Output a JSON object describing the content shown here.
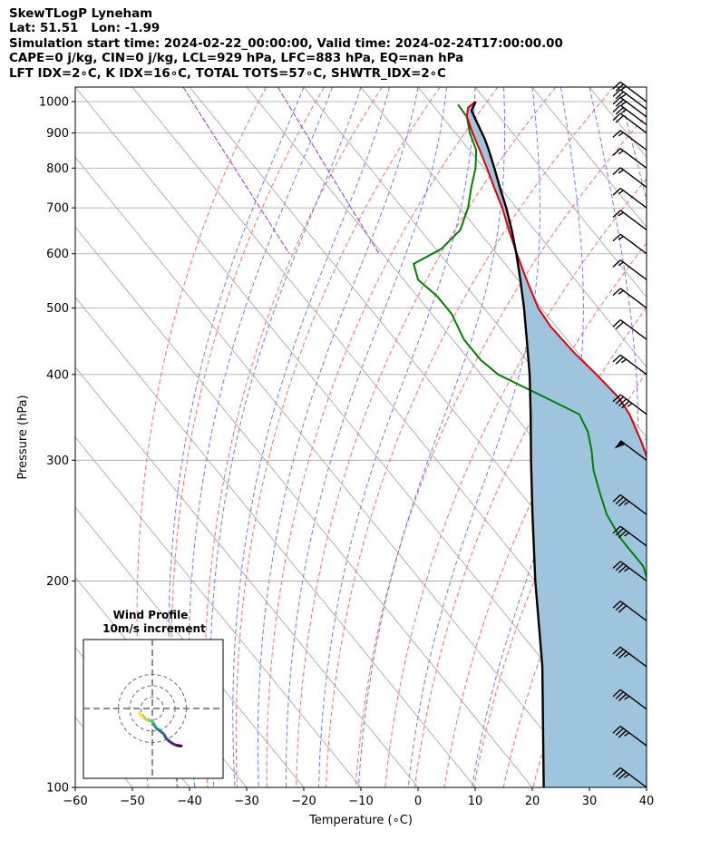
{
  "header": {
    "line1": "SkewTLogP Lyneham",
    "line2": "Lat: 51.51   Lon: -1.99",
    "line3": "Simulation start time: 2024-02-22_00:00:00, Valid time: 2024-02-24T17:00:00.00",
    "line4": "CAPE=0 j/kg, CIN=0 j/kg, LCL=929 hPa, LFC=883 hPa, EQ=nan hPa",
    "line5": "LFT IDX=2∘C, K IDX=16∘C, TOTAL TOTS=57∘C, SHWTR_IDX=2∘C"
  },
  "colors": {
    "temperature": "#e00000",
    "dewpoint": "#008000",
    "parcel": "#000000",
    "cape_fill": "#9fc4de",
    "dry_adiabat": "#ff5050",
    "moist_adiabat": "#5060ff",
    "mixing_ratio": "#9933cc",
    "isotherm": "#a0a0a0"
  },
  "chart_data": {
    "type": "line",
    "xlabel": "Temperature (∘C)",
    "ylabel": "Pressure (hPa)",
    "xlim": [
      -60,
      40
    ],
    "ylim": [
      1050,
      100
    ],
    "y_scale": "log",
    "x_ticks": [
      "−60",
      "−50",
      "−40",
      "−30",
      "−20",
      "−10",
      "0",
      "10",
      "20",
      "30",
      "40"
    ],
    "y_ticks": [
      "100",
      "200",
      "300",
      "400",
      "500",
      "600",
      "700",
      "800",
      "900",
      "1000"
    ],
    "y_tick_values": [
      100,
      200,
      300,
      400,
      500,
      600,
      700,
      800,
      900,
      1000
    ],
    "series": [
      {
        "key": "temperature",
        "points": [
          [
            1000,
            8
          ],
          [
            980,
            5.8
          ],
          [
            950,
            4.3
          ],
          [
            900,
            3
          ],
          [
            850,
            1.8
          ],
          [
            800,
            0.5
          ],
          [
            750,
            -1
          ],
          [
            700,
            -2.5
          ],
          [
            650,
            -4.5
          ],
          [
            600,
            -6.5
          ],
          [
            550,
            -8.5
          ],
          [
            500,
            -10.5
          ],
          [
            470,
            -11
          ],
          [
            430,
            -10.6
          ],
          [
            400,
            -9.8
          ],
          [
            370,
            -9.2
          ],
          [
            350,
            -9.7
          ],
          [
            320,
            -11.5
          ],
          [
            300,
            -13
          ],
          [
            280,
            -15
          ],
          [
            265,
            -16.5
          ],
          [
            250,
            -18
          ],
          [
            235,
            -17
          ],
          [
            220,
            -14.5
          ],
          [
            205,
            -11
          ],
          [
            190,
            -7.5
          ],
          [
            170,
            -3.5
          ],
          [
            150,
            1
          ],
          [
            130,
            5.5
          ],
          [
            115,
            9
          ],
          [
            100,
            12
          ]
        ]
      },
      {
        "key": "dewpoint",
        "points": [
          [
            990,
            4.5
          ],
          [
            950,
            4.3
          ],
          [
            900,
            2.5
          ],
          [
            850,
            1.2
          ],
          [
            800,
            -1.5
          ],
          [
            750,
            -5
          ],
          [
            700,
            -8.5
          ],
          [
            650,
            -13
          ],
          [
            610,
            -19
          ],
          [
            580,
            -26
          ],
          [
            550,
            -27.5
          ],
          [
            520,
            -26.5
          ],
          [
            490,
            -26.5
          ],
          [
            450,
            -28
          ],
          [
            420,
            -28
          ],
          [
            400,
            -27
          ],
          [
            370,
            -22
          ],
          [
            350,
            -18.5
          ],
          [
            330,
            -19.5
          ],
          [
            310,
            -21.5
          ],
          [
            290,
            -24
          ],
          [
            270,
            -26
          ],
          [
            250,
            -28
          ],
          [
            230,
            -29
          ],
          [
            210,
            -29
          ],
          [
            195,
            -31
          ],
          [
            180,
            -35
          ],
          [
            165,
            -38
          ],
          [
            145,
            -38
          ],
          [
            120,
            -37
          ],
          [
            100,
            -34.5
          ]
        ]
      },
      {
        "key": "parcel",
        "points": [
          [
            1000,
            8
          ],
          [
            970,
            6
          ],
          [
            929,
            5.2
          ],
          [
            883,
            4.3
          ],
          [
            850,
            3.4
          ],
          [
            800,
            1.8
          ],
          [
            750,
            0
          ],
          [
            700,
            -1.8
          ],
          [
            650,
            -4
          ],
          [
            600,
            -6.6
          ],
          [
            550,
            -9.6
          ],
          [
            500,
            -13
          ],
          [
            450,
            -17
          ],
          [
            400,
            -21.5
          ],
          [
            350,
            -27
          ],
          [
            300,
            -33.5
          ],
          [
            250,
            -41
          ],
          [
            200,
            -50
          ],
          [
            150,
            -61
          ],
          [
            100,
            -78
          ]
        ]
      }
    ],
    "wind_barbs": [
      {
        "p": 1000,
        "knots": 25
      },
      {
        "p": 975,
        "knots": 25
      },
      {
        "p": 950,
        "knots": 25
      },
      {
        "p": 925,
        "knots": 25
      },
      {
        "p": 900,
        "knots": 20
      },
      {
        "p": 850,
        "knots": 15
      },
      {
        "p": 800,
        "knots": 15
      },
      {
        "p": 750,
        "knots": 15
      },
      {
        "p": 700,
        "knots": 15
      },
      {
        "p": 650,
        "knots": 15
      },
      {
        "p": 600,
        "knots": 15
      },
      {
        "p": 550,
        "knots": 15
      },
      {
        "p": 500,
        "knots": 15
      },
      {
        "p": 450,
        "knots": 20
      },
      {
        "p": 400,
        "knots": 25
      },
      {
        "p": 350,
        "knots": 45
      },
      {
        "p": 300,
        "knots": 50
      },
      {
        "p": 250,
        "knots": 35
      },
      {
        "p": 225,
        "knots": 35
      },
      {
        "p": 200,
        "knots": 35
      },
      {
        "p": 175,
        "knots": 30
      },
      {
        "p": 150,
        "knots": 35
      },
      {
        "p": 130,
        "knots": 35
      },
      {
        "p": 115,
        "knots": 35
      },
      {
        "p": 100,
        "knots": 35
      }
    ],
    "inset": {
      "title": "Wind Profile",
      "subtitle": "10m/s increment",
      "hodograph": [
        [
          11.5,
          -3.8
        ],
        [
          10,
          -6
        ],
        [
          8.5,
          -7.5
        ],
        [
          7,
          -8.5
        ],
        [
          5.5,
          -9.5
        ],
        [
          4,
          -10.2
        ],
        [
          2.5,
          -10.5
        ],
        [
          1,
          -11
        ],
        [
          -0.2,
          -11.8
        ],
        [
          -1,
          -13
        ],
        [
          -1.7,
          -14.5
        ],
        [
          -2.5,
          -16
        ],
        [
          -3.5,
          -17.3
        ],
        [
          -5,
          -18.5
        ],
        [
          -7,
          -20
        ],
        [
          -9,
          -21.5
        ],
        [
          -10.5,
          -23
        ],
        [
          -11,
          -24.5
        ],
        [
          -12.5,
          -26.5
        ],
        [
          -14.5,
          -28.5
        ],
        [
          -17,
          -30.3
        ],
        [
          -19.5,
          -31.8
        ],
        [
          -22,
          -32.6
        ],
        [
          -24,
          -32.9
        ],
        [
          -25.5,
          -33
        ]
      ]
    }
  }
}
